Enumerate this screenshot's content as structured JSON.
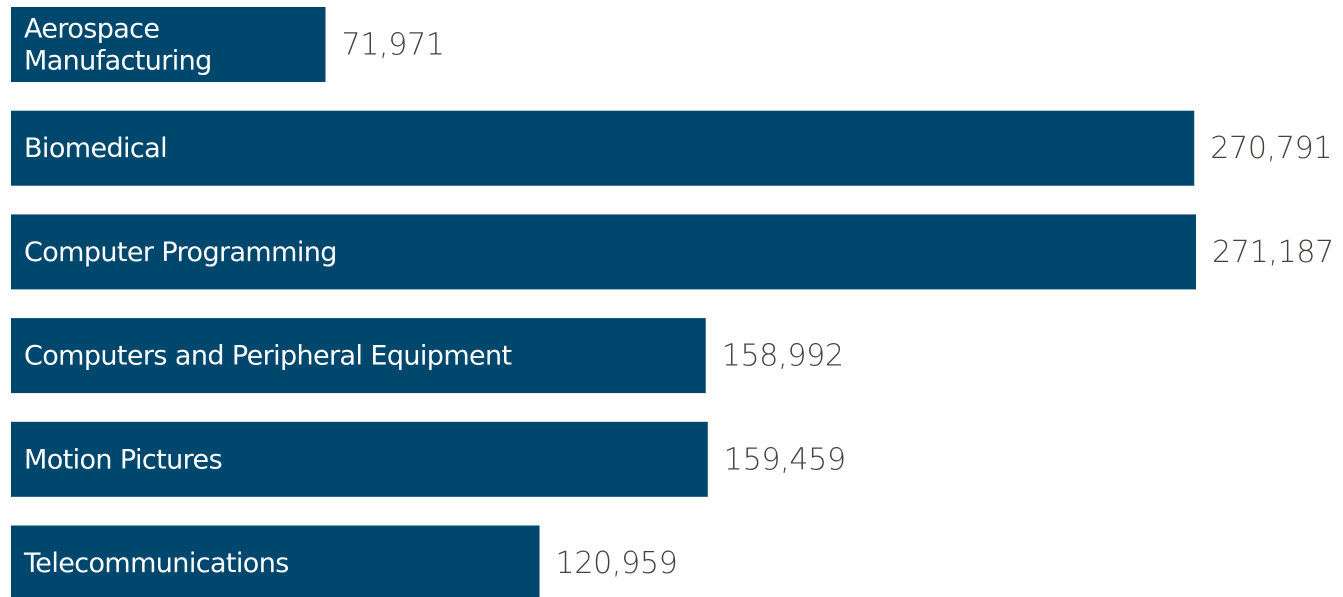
{
  "chart_data": {
    "type": "bar",
    "orientation": "horizontal",
    "categories": [
      "Aerospace Manufacturing",
      "Biomedical",
      "Computer Programming",
      "Computers and Peripheral Equipment",
      "Motion Pictures",
      "Telecommunications"
    ],
    "category_lines": [
      [
        "Aerospace",
        "Manufacturing"
      ],
      [
        "Biomedical"
      ],
      [
        "Computer Programming"
      ],
      [
        "Computers and Peripheral Equipment"
      ],
      [
        "Motion Pictures"
      ],
      [
        "Telecommunications"
      ]
    ],
    "values": [
      71971,
      270791,
      271187,
      158992,
      159459,
      120959
    ],
    "value_labels": [
      "71,971",
      "270,791",
      "271,187",
      "158,992",
      "159,459",
      "120,959"
    ],
    "title": "",
    "xlabel": "",
    "ylabel": "",
    "grid": false,
    "legend": "none",
    "bar_color": "#00476d",
    "label_color": "#ffffff",
    "value_color": "#4a3f3f"
  }
}
